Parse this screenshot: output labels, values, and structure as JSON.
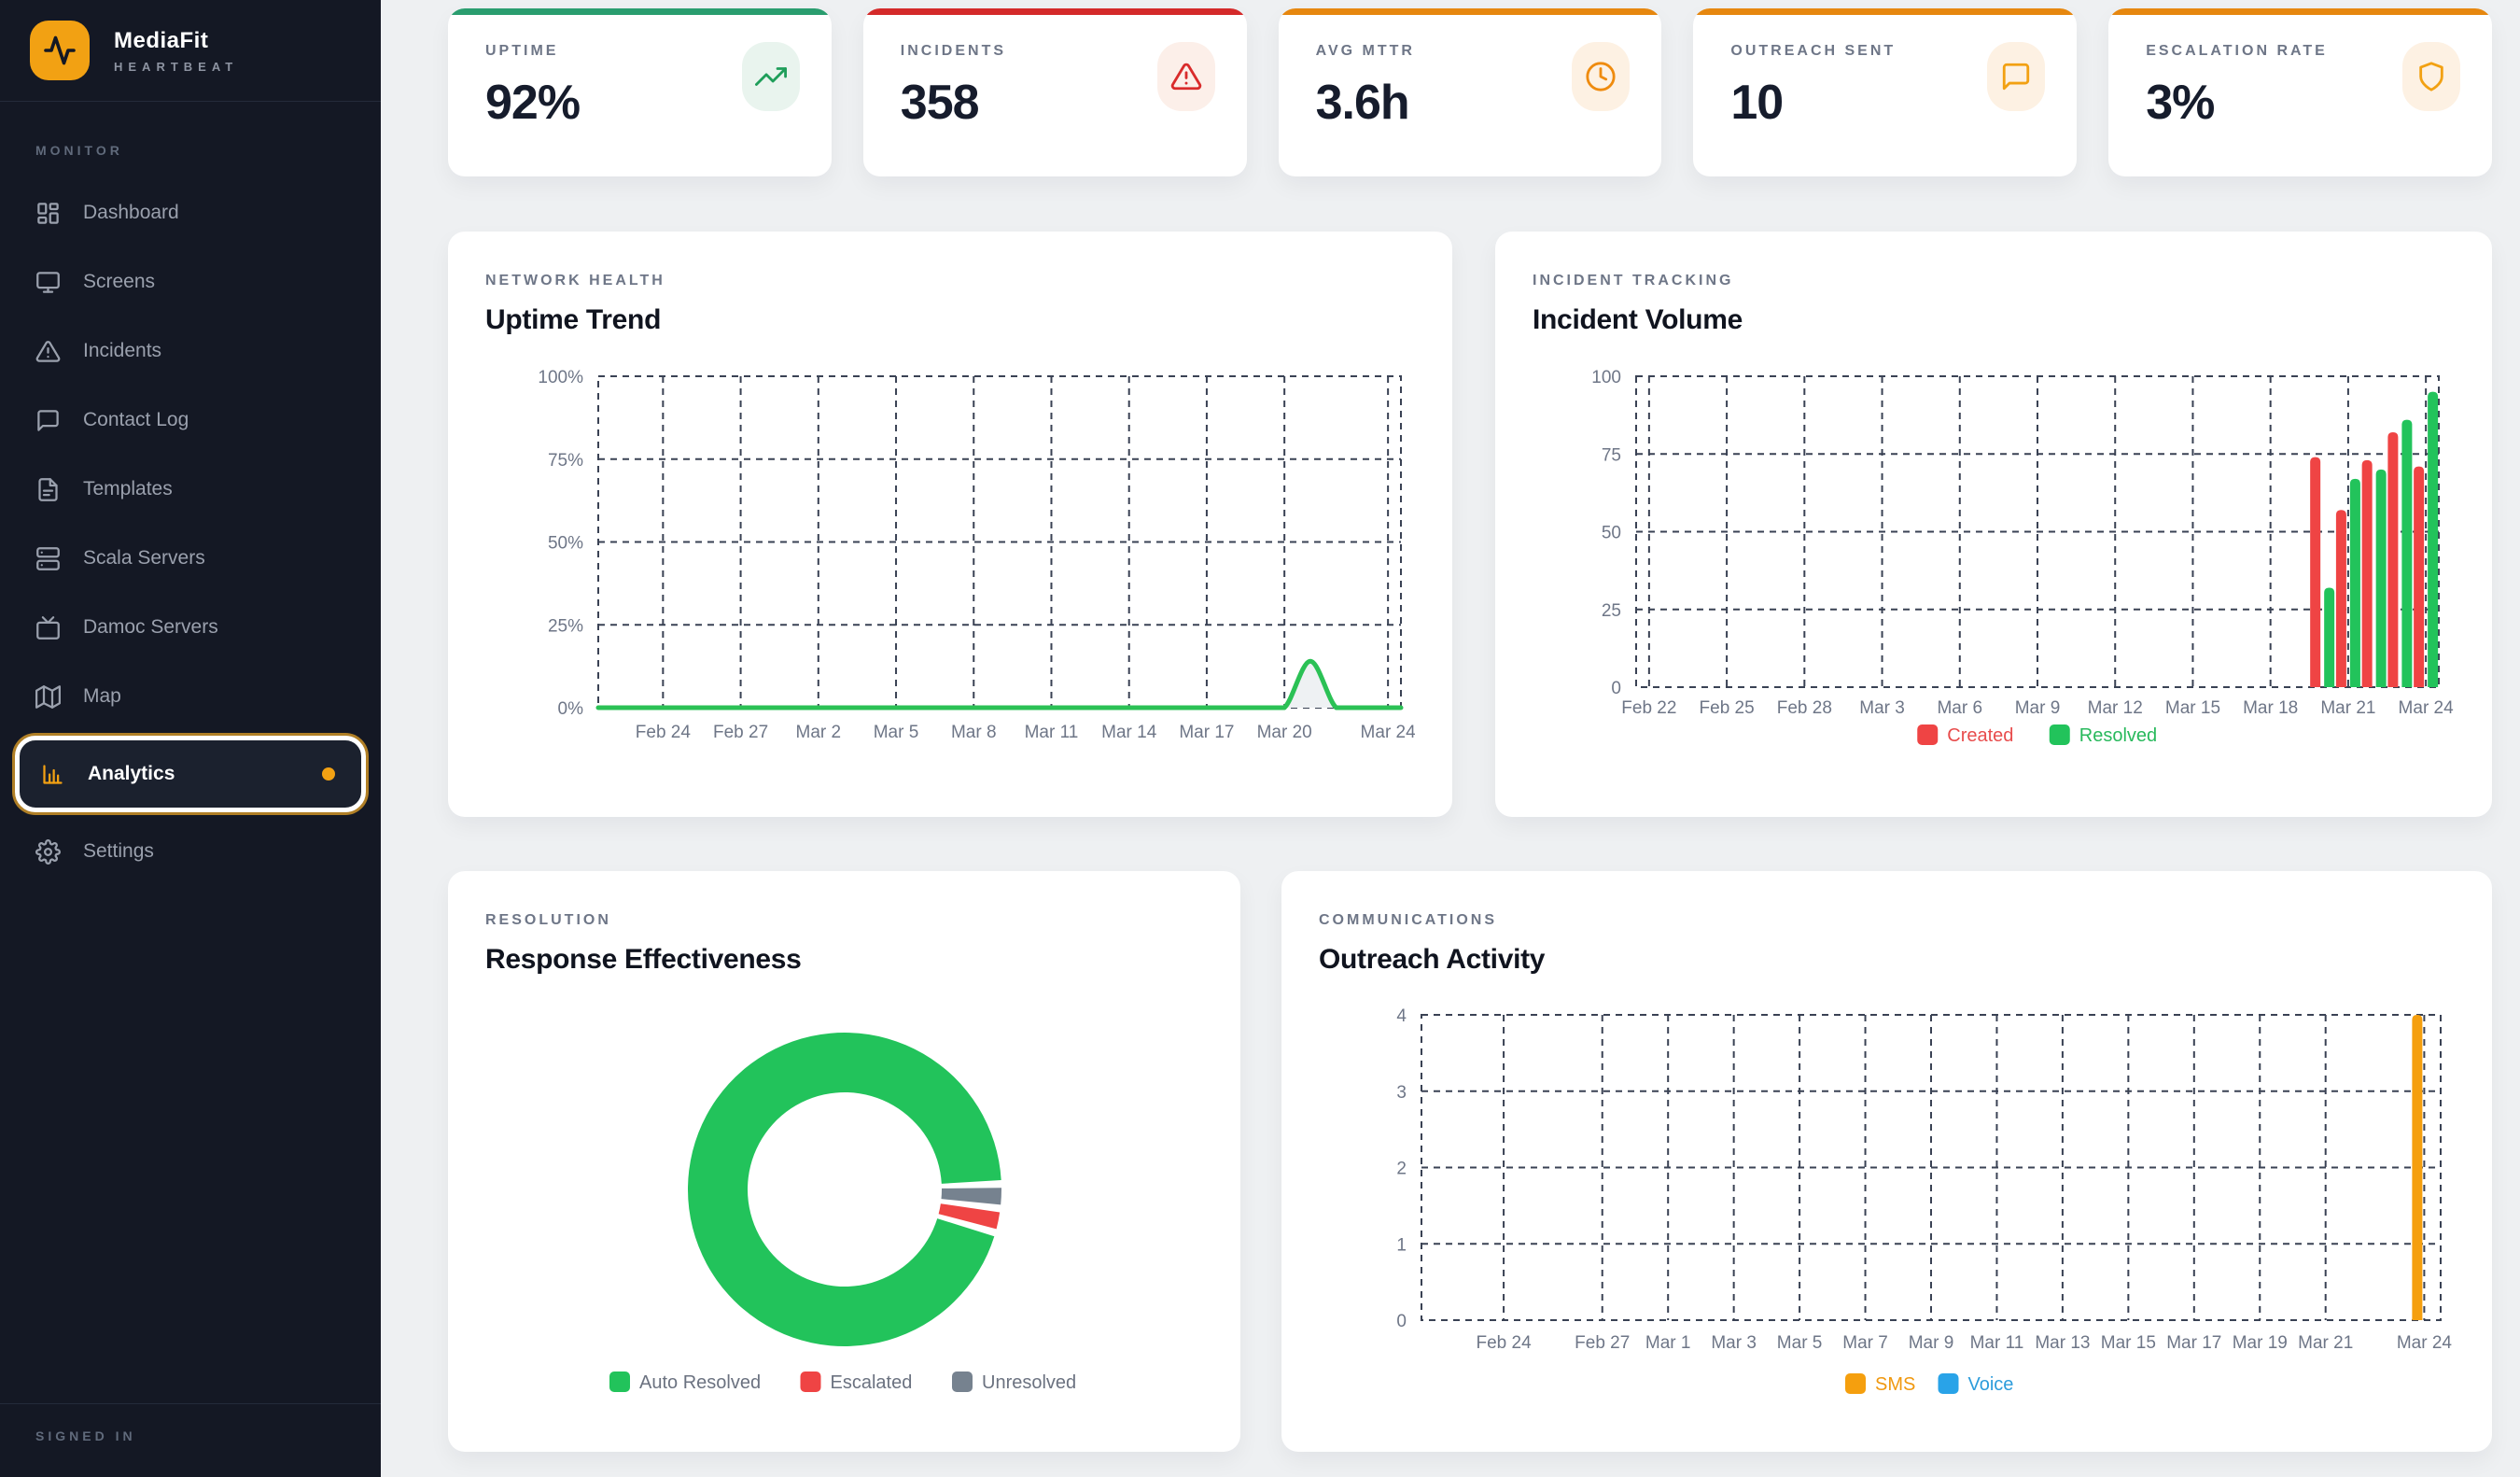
{
  "app": {
    "name": "MediaFit",
    "tagline": "HEARTBEAT"
  },
  "sidebar": {
    "section_label": "MONITOR",
    "footer_label": "SIGNED IN",
    "items": [
      {
        "id": "dashboard",
        "label": "Dashboard",
        "icon": "grid-icon",
        "active": false
      },
      {
        "id": "screens",
        "label": "Screens",
        "icon": "monitor-icon",
        "active": false
      },
      {
        "id": "incidents",
        "label": "Incidents",
        "icon": "alert-triangle-icon",
        "active": false
      },
      {
        "id": "contact-log",
        "label": "Contact Log",
        "icon": "message-icon",
        "active": false
      },
      {
        "id": "templates",
        "label": "Templates",
        "icon": "file-icon",
        "active": false
      },
      {
        "id": "scala-servers",
        "label": "Scala Servers",
        "icon": "server-icon",
        "active": false
      },
      {
        "id": "damoc-servers",
        "label": "Damoc Servers",
        "icon": "tv-icon",
        "active": false
      },
      {
        "id": "map",
        "label": "Map",
        "icon": "map-icon",
        "active": false
      },
      {
        "id": "analytics",
        "label": "Analytics",
        "icon": "bar-chart-icon",
        "active": true,
        "notification_dot": true
      },
      {
        "id": "settings",
        "label": "Settings",
        "icon": "gear-icon",
        "active": false
      }
    ]
  },
  "kpis": [
    {
      "label": "UPTIME",
      "value": "92%",
      "icon": "trending-up-icon",
      "accent": "#2a9d6f",
      "icon_color": "#1f9e5a",
      "icon_bg": "#e9f4ee"
    },
    {
      "label": "INCIDENTS",
      "value": "358",
      "icon": "alert-triangle-icon",
      "accent": "#d42a2a",
      "icon_color": "#d92b2b",
      "icon_bg": "#fcefe9"
    },
    {
      "label": "AVG MTTR",
      "value": "3.6h",
      "icon": "clock-icon",
      "accent": "#e6870f",
      "icon_color": "#ef8b0e",
      "icon_bg": "#fdf1e3"
    },
    {
      "label": "OUTREACH SENT",
      "value": "10",
      "icon": "message-icon",
      "accent": "#e6870f",
      "icon_color": "#f2a113",
      "icon_bg": "#fdf1e3"
    },
    {
      "label": "ESCALATION RATE",
      "value": "3%",
      "icon": "shield-icon",
      "accent": "#e6870f",
      "icon_color": "#f2a113",
      "icon_bg": "#fdf1e3"
    }
  ],
  "chart_data": [
    {
      "id": "uptime-trend",
      "type": "line",
      "section": "NETWORK HEALTH",
      "title": "Uptime Trend",
      "x_start": "Feb 22",
      "x_days": 31,
      "x_ticks": [
        {
          "day": 2,
          "label": "Feb 24"
        },
        {
          "day": 5,
          "label": "Feb 27"
        },
        {
          "day": 8,
          "label": "Mar 2"
        },
        {
          "day": 11,
          "label": "Mar 5"
        },
        {
          "day": 14,
          "label": "Mar 8"
        },
        {
          "day": 17,
          "label": "Mar 11"
        },
        {
          "day": 20,
          "label": "Mar 14"
        },
        {
          "day": 23,
          "label": "Mar 17"
        },
        {
          "day": 26,
          "label": "Mar 20"
        },
        {
          "day": 30,
          "label": "Mar 24"
        }
      ],
      "y_max": 100,
      "y_ticks": [
        {
          "v": 0,
          "label": "0%"
        },
        {
          "v": 25,
          "label": "25%"
        },
        {
          "v": 50,
          "label": "50%"
        },
        {
          "v": 75,
          "label": "75%"
        },
        {
          "v": 100,
          "label": "100%"
        }
      ],
      "grid": true,
      "series": [
        {
          "name": "Uptime",
          "color": "#2bc155",
          "fill": "#eef1f3",
          "values": [
            0,
            0,
            0,
            0,
            0,
            0,
            0,
            0,
            0,
            0,
            0,
            0,
            0,
            0,
            0,
            0,
            0,
            0,
            0,
            0,
            0,
            0,
            0,
            0,
            0,
            0,
            0,
            14,
            0,
            0,
            0
          ]
        }
      ]
    },
    {
      "id": "incident-volume",
      "type": "bar",
      "section": "INCIDENT TRACKING",
      "title": "Incident Volume",
      "x_start": "Feb 22",
      "x_days": 31,
      "x_ticks": [
        {
          "day": 0,
          "label": "Feb 22"
        },
        {
          "day": 3,
          "label": "Feb 25"
        },
        {
          "day": 6,
          "label": "Feb 28"
        },
        {
          "day": 9,
          "label": "Mar 3"
        },
        {
          "day": 12,
          "label": "Mar 6"
        },
        {
          "day": 15,
          "label": "Mar 9"
        },
        {
          "day": 18,
          "label": "Mar 12"
        },
        {
          "day": 21,
          "label": "Mar 15"
        },
        {
          "day": 24,
          "label": "Mar 18"
        },
        {
          "day": 27,
          "label": "Mar 21"
        },
        {
          "day": 30,
          "label": "Mar 24"
        }
      ],
      "y_max": 100,
      "y_ticks": [
        {
          "v": 0,
          "label": "0"
        },
        {
          "v": 25,
          "label": "25"
        },
        {
          "v": 50,
          "label": "50"
        },
        {
          "v": 75,
          "label": "75"
        },
        {
          "v": 100,
          "label": "100"
        }
      ],
      "grid": true,
      "series": [
        {
          "name": "Created",
          "color": "#ef4444",
          "text_color": "#e84c4c",
          "values": [
            0,
            0,
            0,
            0,
            0,
            0,
            0,
            0,
            0,
            0,
            0,
            0,
            0,
            0,
            0,
            0,
            0,
            0,
            0,
            0,
            0,
            0,
            0,
            0,
            0,
            0,
            74,
            57,
            73,
            82,
            71
          ]
        },
        {
          "name": "Resolved",
          "color": "#22c35b",
          "text_color": "#28b95c",
          "values": [
            0,
            0,
            0,
            0,
            0,
            0,
            0,
            0,
            0,
            0,
            0,
            0,
            0,
            0,
            0,
            0,
            0,
            0,
            0,
            0,
            0,
            0,
            0,
            0,
            0,
            0,
            32,
            67,
            70,
            86,
            95
          ]
        }
      ]
    },
    {
      "id": "response-effectiveness",
      "type": "donut",
      "section": "RESOLUTION",
      "title": "Response Effectiveness",
      "legend_text_color": "#6b7280",
      "slices": [
        {
          "label": "Auto Resolved",
          "value": 95,
          "color": "#22c35b"
        },
        {
          "label": "Escalated",
          "value": 2.5,
          "color": "#ef4444"
        },
        {
          "label": "Unresolved",
          "value": 2.5,
          "color": "#76828f"
        }
      ]
    },
    {
      "id": "outreach-activity",
      "type": "bar",
      "section": "COMMUNICATIONS",
      "title": "Outreach Activity",
      "x_start": "Feb 22",
      "x_days": 31,
      "x_ticks": [
        {
          "day": 2,
          "label": "Feb 24"
        },
        {
          "day": 5,
          "label": "Feb 27"
        },
        {
          "day": 7,
          "label": "Mar 1"
        },
        {
          "day": 9,
          "label": "Mar 3"
        },
        {
          "day": 11,
          "label": "Mar 5"
        },
        {
          "day": 13,
          "label": "Mar 7"
        },
        {
          "day": 15,
          "label": "Mar 9"
        },
        {
          "day": 17,
          "label": "Mar 11"
        },
        {
          "day": 19,
          "label": "Mar 13"
        },
        {
          "day": 21,
          "label": "Mar 15"
        },
        {
          "day": 23,
          "label": "Mar 17"
        },
        {
          "day": 25,
          "label": "Mar 19"
        },
        {
          "day": 27,
          "label": "Mar 21"
        },
        {
          "day": 30,
          "label": "Mar 24"
        }
      ],
      "y_max": 4,
      "y_ticks": [
        {
          "v": 0,
          "label": "0"
        },
        {
          "v": 1,
          "label": "1"
        },
        {
          "v": 2,
          "label": "2"
        },
        {
          "v": 3,
          "label": "3"
        },
        {
          "v": 4,
          "label": "4"
        }
      ],
      "grid": true,
      "series": [
        {
          "name": "SMS",
          "color": "#f59f0e",
          "text_color": "#f0980f",
          "values": [
            0,
            0,
            0,
            0,
            0,
            0,
            0,
            0,
            0,
            0,
            0,
            0,
            0,
            0,
            0,
            0,
            0,
            0,
            0,
            0,
            0,
            0,
            0,
            0,
            0,
            0,
            0,
            0,
            0,
            0,
            4
          ]
        },
        {
          "name": "Voice",
          "color": "#29a3e8",
          "text_color": "#2d9cdb",
          "values": [
            0,
            0,
            0,
            0,
            0,
            0,
            0,
            0,
            0,
            0,
            0,
            0,
            0,
            0,
            0,
            0,
            0,
            0,
            0,
            0,
            0,
            0,
            0,
            0,
            0,
            0,
            0,
            0,
            0,
            0,
            0
          ]
        }
      ]
    }
  ],
  "colors": {
    "sidebar_bg": "#141824",
    "accent_orange": "#f2a113",
    "main_bg": "#eef0f2",
    "grid_line": "#3a4254",
    "tick_text": "#6e7687"
  }
}
